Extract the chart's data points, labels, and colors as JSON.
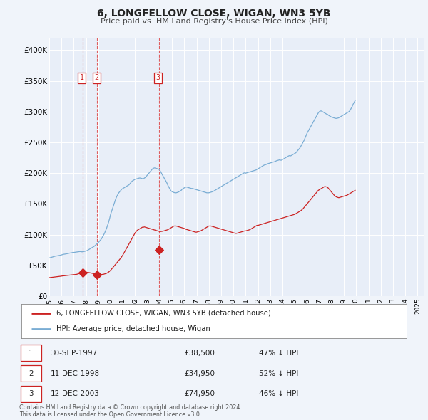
{
  "title": "6, LONGFELLOW CLOSE, WIGAN, WN3 5YB",
  "subtitle": "Price paid vs. HM Land Registry's House Price Index (HPI)",
  "hpi_label": "HPI: Average price, detached house, Wigan",
  "property_label": "6, LONGFELLOW CLOSE, WIGAN, WN3 5YB (detached house)",
  "hpi_color": "#7aadd4",
  "property_color": "#cc2222",
  "background_color": "#f0f4fa",
  "plot_bg_color": "#e8eef8",
  "grid_color": "#ffffff",
  "xlim": [
    1995.0,
    2025.5
  ],
  "ylim": [
    0,
    420000
  ],
  "yticks": [
    0,
    50000,
    100000,
    150000,
    200000,
    250000,
    300000,
    350000,
    400000
  ],
  "ytick_labels": [
    "£0",
    "£50K",
    "£100K",
    "£150K",
    "£200K",
    "£250K",
    "£300K",
    "£350K",
    "£400K"
  ],
  "sales": [
    {
      "num": 1,
      "date": "30-SEP-1997",
      "year": 1997.75,
      "price": 38500,
      "pct": "47%",
      "dir": "↓"
    },
    {
      "num": 2,
      "date": "11-DEC-1998",
      "year": 1998.92,
      "price": 34950,
      "pct": "52%",
      "dir": "↓"
    },
    {
      "num": 3,
      "date": "12-DEC-2003",
      "year": 2003.92,
      "price": 74950,
      "pct": "46%",
      "dir": "↓"
    }
  ],
  "hpi_monthly": [
    62000,
    62500,
    63000,
    63500,
    64000,
    64500,
    65000,
    65200,
    65500,
    65800,
    66000,
    66500,
    67000,
    67500,
    68000,
    68200,
    68500,
    68800,
    69000,
    69500,
    70000,
    70200,
    70500,
    71000,
    71000,
    71200,
    71500,
    71800,
    72000,
    72200,
    72500,
    72200,
    72000,
    72200,
    72500,
    73000,
    73500,
    74000,
    75000,
    76000,
    77000,
    78000,
    79000,
    80000,
    81000,
    82500,
    84000,
    85500,
    87000,
    89000,
    91000,
    93000,
    96000,
    99000,
    102000,
    106000,
    110000,
    115000,
    120000,
    126000,
    133000,
    138000,
    143000,
    148000,
    153000,
    158000,
    162000,
    165000,
    168000,
    170000,
    172000,
    174000,
    175000,
    176000,
    177000,
    178000,
    179000,
    180000,
    181000,
    183000,
    185000,
    187000,
    188000,
    189000,
    190000,
    190500,
    191000,
    191500,
    192000,
    192000,
    191500,
    191000,
    190500,
    192000,
    193000,
    195000,
    197000,
    199000,
    201000,
    203000,
    205000,
    207000,
    208000,
    208500,
    208000,
    207500,
    207000,
    206500,
    205000,
    202000,
    199000,
    196000,
    193000,
    190000,
    187000,
    184000,
    180000,
    177000,
    174000,
    171000,
    170000,
    169000,
    168500,
    168000,
    168000,
    168500,
    169000,
    170000,
    171000,
    172000,
    174000,
    175000,
    176000,
    177000,
    177500,
    177000,
    176500,
    176000,
    175500,
    175000,
    175000,
    174500,
    174000,
    173500,
    173000,
    172500,
    172000,
    171500,
    171000,
    170500,
    170000,
    169500,
    169000,
    168500,
    168000,
    168000,
    168000,
    168500,
    169000,
    169500,
    170000,
    171000,
    172000,
    173000,
    174000,
    175000,
    176000,
    177000,
    178000,
    179000,
    180000,
    181000,
    182000,
    183000,
    184000,
    185000,
    186000,
    187000,
    188000,
    189000,
    190000,
    191000,
    192000,
    193000,
    194000,
    195000,
    196000,
    197000,
    198000,
    199000,
    200000,
    200500,
    200000,
    200500,
    201000,
    201500,
    202000,
    202500,
    203000,
    203500,
    204000,
    204500,
    205000,
    206000,
    207000,
    208000,
    209000,
    210000,
    211000,
    212000,
    213000,
    213500,
    214000,
    215000,
    215500,
    216000,
    216500,
    217000,
    217500,
    218000,
    218500,
    219000,
    220000,
    220500,
    221000,
    221500,
    221000,
    221000,
    222000,
    223000,
    224000,
    225000,
    226000,
    227000,
    228000,
    228500,
    228000,
    229000,
    230000,
    231000,
    232000,
    233000,
    235000,
    237000,
    239000,
    241000,
    244000,
    247000,
    250000,
    253000,
    257000,
    261000,
    265000,
    268000,
    271000,
    274000,
    277000,
    280000,
    283000,
    286000,
    289000,
    292000,
    295000,
    298000,
    300000,
    301000,
    301000,
    300000,
    299000,
    298000,
    297000,
    296000,
    295500,
    294000,
    293000,
    292000,
    291000,
    290500,
    290000,
    289500,
    289000,
    289000,
    289500,
    290000,
    291000,
    292000,
    293000,
    294000,
    295000,
    296000,
    297000,
    298000,
    299000,
    300000,
    302000,
    305000,
    308000,
    312000,
    315000,
    318000
  ],
  "prop_monthly": [
    30000,
    30200,
    30400,
    30600,
    30800,
    31000,
    31200,
    31400,
    31600,
    31800,
    32000,
    32300,
    32600,
    32800,
    33000,
    33200,
    33400,
    33600,
    33800,
    34000,
    34200,
    34400,
    34500,
    34700,
    34800,
    35000,
    35200,
    35500,
    36000,
    36500,
    37000,
    37500,
    38000,
    38200,
    38500,
    38500,
    38500,
    38500,
    38500,
    38200,
    38000,
    37500,
    37000,
    36800,
    36500,
    36200,
    36000,
    35700,
    35500,
    35200,
    35000,
    35000,
    35200,
    35500,
    36000,
    36500,
    37000,
    38000,
    39000,
    40500,
    42000,
    44000,
    46000,
    48000,
    50000,
    52000,
    54000,
    56000,
    58000,
    60000,
    62000,
    64500,
    67000,
    70000,
    73000,
    76000,
    79000,
    82000,
    85000,
    88000,
    91000,
    94000,
    97000,
    100000,
    103000,
    105000,
    107000,
    108000,
    109000,
    110000,
    111000,
    112000,
    112000,
    112500,
    112000,
    111500,
    111000,
    110500,
    110000,
    109500,
    109000,
    108500,
    108000,
    107500,
    107000,
    106500,
    106000,
    105500,
    105000,
    105000,
    105200,
    105500,
    106000,
    106500,
    107000,
    107500,
    108000,
    109000,
    110000,
    111000,
    112000,
    113000,
    114000,
    114000,
    114000,
    113500,
    113000,
    112500,
    112000,
    111500,
    111000,
    110500,
    110000,
    109000,
    108500,
    108000,
    107500,
    107000,
    106500,
    106000,
    105500,
    105000,
    104500,
    104000,
    104000,
    104500,
    105000,
    105500,
    106000,
    107000,
    108000,
    109000,
    110000,
    111000,
    112000,
    113000,
    114000,
    114000,
    114000,
    113500,
    113000,
    112500,
    112000,
    111500,
    111000,
    110500,
    110000,
    109500,
    109000,
    108500,
    108000,
    107500,
    107000,
    106500,
    106000,
    105500,
    105000,
    104500,
    104000,
    103500,
    103000,
    102500,
    102000,
    102000,
    102500,
    103000,
    103500,
    104000,
    104500,
    105000,
    105500,
    106000,
    106000,
    106500,
    107000,
    107500,
    108000,
    109000,
    110000,
    111000,
    112000,
    113000,
    114000,
    115000,
    115000,
    115500,
    116000,
    116500,
    117000,
    117500,
    118000,
    118500,
    119000,
    119500,
    120000,
    120500,
    121000,
    121500,
    122000,
    122500,
    123000,
    123500,
    124000,
    124500,
    125000,
    125500,
    126000,
    126500,
    127000,
    127500,
    128000,
    128500,
    129000,
    129500,
    130000,
    130500,
    131000,
    131500,
    132000,
    132500,
    133000,
    134000,
    135000,
    136000,
    137000,
    138000,
    139000,
    140500,
    142000,
    144000,
    146000,
    148000,
    150000,
    152000,
    154000,
    156000,
    158000,
    160000,
    162000,
    164000,
    166000,
    168000,
    170000,
    172000,
    173000,
    174000,
    175000,
    176000,
    177000,
    178000,
    178000,
    177500,
    177000,
    175000,
    173000,
    171000,
    169000,
    167000,
    165000,
    163000,
    162000,
    161000,
    160500,
    160000,
    160500,
    161000,
    161500,
    162000,
    162500,
    163000,
    163500,
    164000,
    165000,
    166000,
    167000,
    168000,
    169000,
    170000,
    171000,
    172000
  ],
  "footer": "Contains HM Land Registry data © Crown copyright and database right 2024.\nThis data is licensed under the Open Government Licence v3.0.",
  "xticks": [
    1995,
    1996,
    1997,
    1998,
    1999,
    2000,
    2001,
    2002,
    2003,
    2004,
    2005,
    2006,
    2007,
    2008,
    2009,
    2010,
    2011,
    2012,
    2013,
    2014,
    2015,
    2016,
    2017,
    2018,
    2019,
    2020,
    2021,
    2022,
    2023,
    2024,
    2025
  ]
}
